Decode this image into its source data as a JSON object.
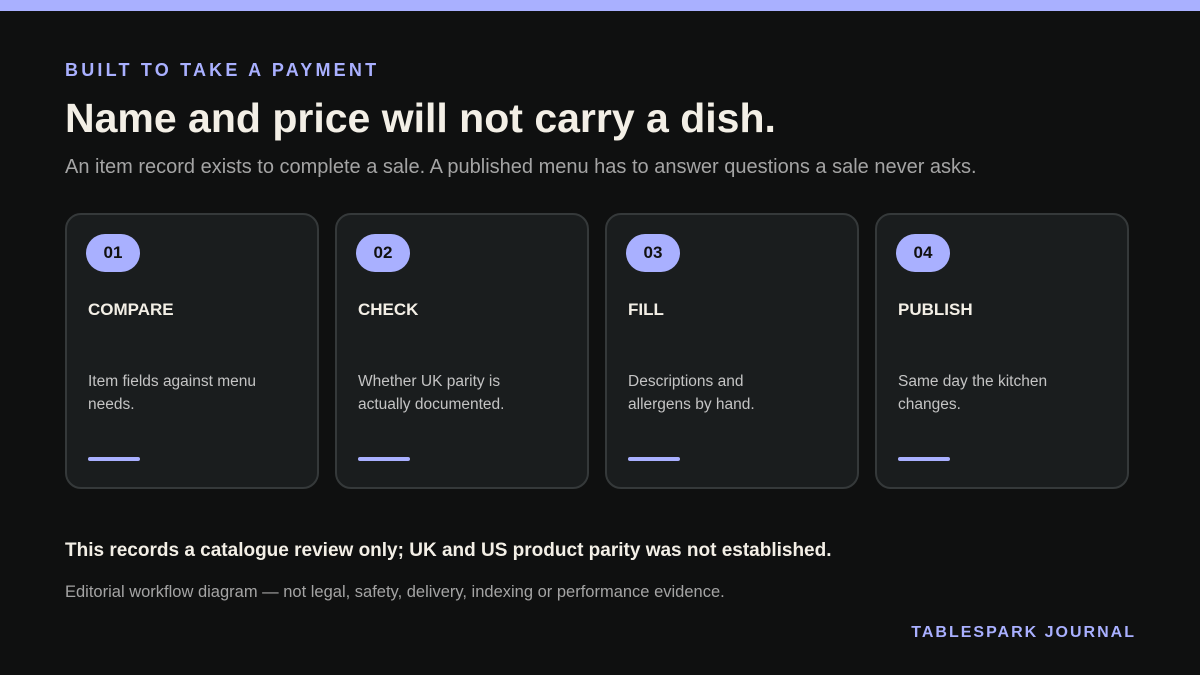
{
  "eyebrow": "BUILT TO TAKE A PAYMENT",
  "title": "Name and price will not carry a dish.",
  "subtitle": "An item record exists to complete a sale. A published menu has to answer questions a sale never asks.",
  "steps": [
    {
      "number": "01",
      "label": "COMPARE",
      "text": "Item fields against menu needs."
    },
    {
      "number": "02",
      "label": "CHECK",
      "text": "Whether UK parity is actually documented."
    },
    {
      "number": "03",
      "label": "FILL",
      "text": "Descriptions and allergens by hand."
    },
    {
      "number": "04",
      "label": "PUBLISH",
      "text": "Same day the kitchen changes."
    }
  ],
  "note": "This records a catalogue review only; UK and US product parity was not established.",
  "disclaimer": "Editorial workflow diagram — not legal, safety, delivery, indexing or performance evidence.",
  "brand": "TABLESPARK JOURNAL"
}
